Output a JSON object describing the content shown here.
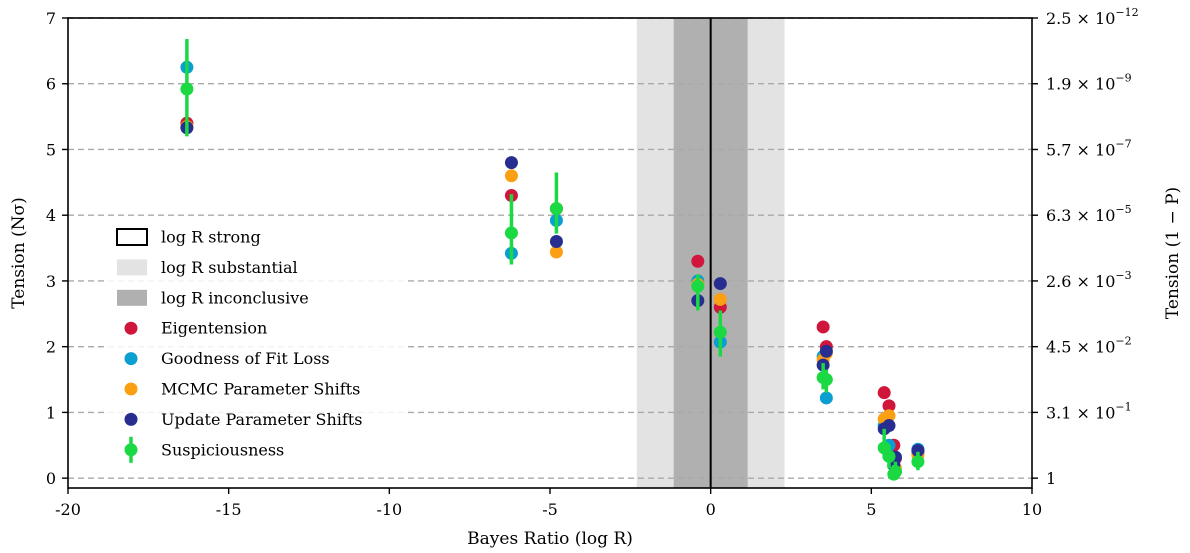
{
  "chart_data": {
    "type": "scatter",
    "xlabel": "Bayes Ratio (log R)",
    "ylabel": "Tension (Nσ)",
    "ylabel_right": "Tension (1 − P)",
    "xlim": [
      -20,
      10
    ],
    "ylim": [
      -0.15,
      7
    ],
    "x_ticks": [
      -20,
      -15,
      -10,
      -5,
      0,
      5,
      10
    ],
    "x_tick_labels": [
      "-20",
      "-15",
      "-10",
      "-5",
      "0",
      "5",
      "10"
    ],
    "y_ticks": [
      0,
      1,
      2,
      3,
      4,
      5,
      6,
      7
    ],
    "y_tick_labels": [
      "0",
      "1",
      "2",
      "3",
      "4",
      "5",
      "6",
      "7"
    ],
    "right_ticks": [
      {
        "y": 0,
        "mantissa": "1",
        "exponent": ""
      },
      {
        "y": 1,
        "mantissa": "3.1",
        "exponent": "−1"
      },
      {
        "y": 2,
        "mantissa": "4.5",
        "exponent": "−2"
      },
      {
        "y": 3,
        "mantissa": "2.6",
        "exponent": "−3"
      },
      {
        "y": 4,
        "mantissa": "6.3",
        "exponent": "−5"
      },
      {
        "y": 5,
        "mantissa": "5.7",
        "exponent": "−7"
      },
      {
        "y": 6,
        "mantissa": "1.9",
        "exponent": "−9"
      },
      {
        "y": 7,
        "mantissa": "2.5",
        "exponent": "−12"
      }
    ],
    "grid": "horizontal dashed",
    "legend_position": "center-left",
    "bands": [
      {
        "name": "log R substantial",
        "x0": -2.3,
        "x1": 2.3,
        "color": "#e3e3e3"
      },
      {
        "name": "log R inconclusive",
        "x0": -1.15,
        "x1": 1.15,
        "color": "#b0b0b0"
      }
    ],
    "strong_line_x": 0,
    "legend": [
      {
        "label": "log R strong",
        "kind": "box",
        "color": "#000000"
      },
      {
        "label": "log R substantial",
        "kind": "band",
        "color": "#e3e3e3"
      },
      {
        "label": "log R inconclusive",
        "kind": "band",
        "color": "#b0b0b0"
      },
      {
        "label": "Eigentension",
        "kind": "dot",
        "color": "#d0163a"
      },
      {
        "label": "Goodness of Fit Loss",
        "kind": "dot",
        "color": "#0a9fd0"
      },
      {
        "label": "MCMC Parameter Shifts",
        "kind": "dot",
        "color": "#fba012"
      },
      {
        "label": "Update Parameter Shifts",
        "kind": "dot",
        "color": "#282e8f"
      },
      {
        "label": "Suspiciousness",
        "kind": "errdot",
        "color": "#1ad942"
      }
    ],
    "series": [
      {
        "name": "Eigentension",
        "color": "#d0163a",
        "points": [
          {
            "x": -16.3,
            "y": 5.4
          },
          {
            "x": -6.2,
            "y": 4.3
          },
          {
            "x": -4.8,
            "y": 4.1
          },
          {
            "x": -0.4,
            "y": 3.3
          },
          {
            "x": 0.3,
            "y": 2.6
          },
          {
            "x": 3.5,
            "y": 2.3
          },
          {
            "x": 3.6,
            "y": 2.0
          },
          {
            "x": 5.4,
            "y": 1.3
          },
          {
            "x": 5.55,
            "y": 1.1
          },
          {
            "x": 5.7,
            "y": 0.5
          },
          {
            "x": 5.75,
            "y": 0.3
          },
          {
            "x": 6.45,
            "y": 0.4
          }
        ]
      },
      {
        "name": "Goodness of Fit Loss",
        "color": "#0a9fd0",
        "points": [
          {
            "x": -16.3,
            "y": 6.25
          },
          {
            "x": -6.2,
            "y": 3.42
          },
          {
            "x": -4.8,
            "y": 3.92
          },
          {
            "x": -0.4,
            "y": 3.0
          },
          {
            "x": 0.3,
            "y": 2.07
          },
          {
            "x": 3.5,
            "y": 1.85
          },
          {
            "x": 3.6,
            "y": 1.22
          },
          {
            "x": 5.4,
            "y": 0.8
          },
          {
            "x": 5.55,
            "y": 0.5
          },
          {
            "x": 5.7,
            "y": 0.2
          },
          {
            "x": 5.75,
            "y": 0.1
          },
          {
            "x": 6.45,
            "y": 0.44
          }
        ]
      },
      {
        "name": "MCMC Parameter Shifts",
        "color": "#fba012",
        "points": [
          {
            "x": -16.3,
            "y": 5.35
          },
          {
            "x": -6.2,
            "y": 4.6
          },
          {
            "x": -4.8,
            "y": 3.44
          },
          {
            "x": -0.4,
            "y": 2.95
          },
          {
            "x": 0.3,
            "y": 2.72
          },
          {
            "x": 3.5,
            "y": 1.8
          },
          {
            "x": 3.6,
            "y": 1.9
          },
          {
            "x": 5.4,
            "y": 0.9
          },
          {
            "x": 5.55,
            "y": 0.95
          },
          {
            "x": 5.7,
            "y": 0.3
          },
          {
            "x": 5.75,
            "y": 0.15
          },
          {
            "x": 6.45,
            "y": 0.35
          }
        ]
      },
      {
        "name": "Update Parameter Shifts",
        "color": "#282e8f",
        "points": [
          {
            "x": -16.3,
            "y": 5.33
          },
          {
            "x": -6.2,
            "y": 4.8
          },
          {
            "x": -4.8,
            "y": 3.6
          },
          {
            "x": -0.4,
            "y": 2.7
          },
          {
            "x": 0.3,
            "y": 2.96
          },
          {
            "x": 3.5,
            "y": 1.72
          },
          {
            "x": 3.6,
            "y": 1.93
          },
          {
            "x": 5.4,
            "y": 0.75
          },
          {
            "x": 5.55,
            "y": 0.8
          },
          {
            "x": 5.7,
            "y": 0.2
          },
          {
            "x": 5.75,
            "y": 0.32
          },
          {
            "x": 6.45,
            "y": 0.42
          }
        ]
      }
    ],
    "errorbar_series": {
      "name": "Suspiciousness",
      "color": "#1ad942",
      "points": [
        {
          "x": -16.3,
          "y": 5.92,
          "lo": 5.2,
          "hi": 6.68
        },
        {
          "x": -6.2,
          "y": 3.73,
          "lo": 3.25,
          "hi": 4.32
        },
        {
          "x": -4.8,
          "y": 4.1,
          "lo": 3.72,
          "hi": 4.65
        },
        {
          "x": -0.4,
          "y": 2.92,
          "lo": 2.55,
          "hi": 3.1
        },
        {
          "x": 0.3,
          "y": 2.22,
          "lo": 1.85,
          "hi": 2.55
        },
        {
          "x": 3.5,
          "y": 1.53,
          "lo": 1.35,
          "hi": 1.75
        },
        {
          "x": 3.6,
          "y": 1.5,
          "lo": 1.3,
          "hi": 1.65
        },
        {
          "x": 5.4,
          "y": 0.46,
          "lo": 0.3,
          "hi": 0.75
        },
        {
          "x": 5.55,
          "y": 0.33,
          "lo": 0.15,
          "hi": 0.5
        },
        {
          "x": 5.7,
          "y": 0.06,
          "lo": 0.0,
          "hi": 0.2
        },
        {
          "x": 5.75,
          "y": 0.1,
          "lo": 0.0,
          "hi": 0.25
        },
        {
          "x": 6.45,
          "y": 0.25,
          "lo": 0.12,
          "hi": 0.4
        }
      ]
    }
  }
}
